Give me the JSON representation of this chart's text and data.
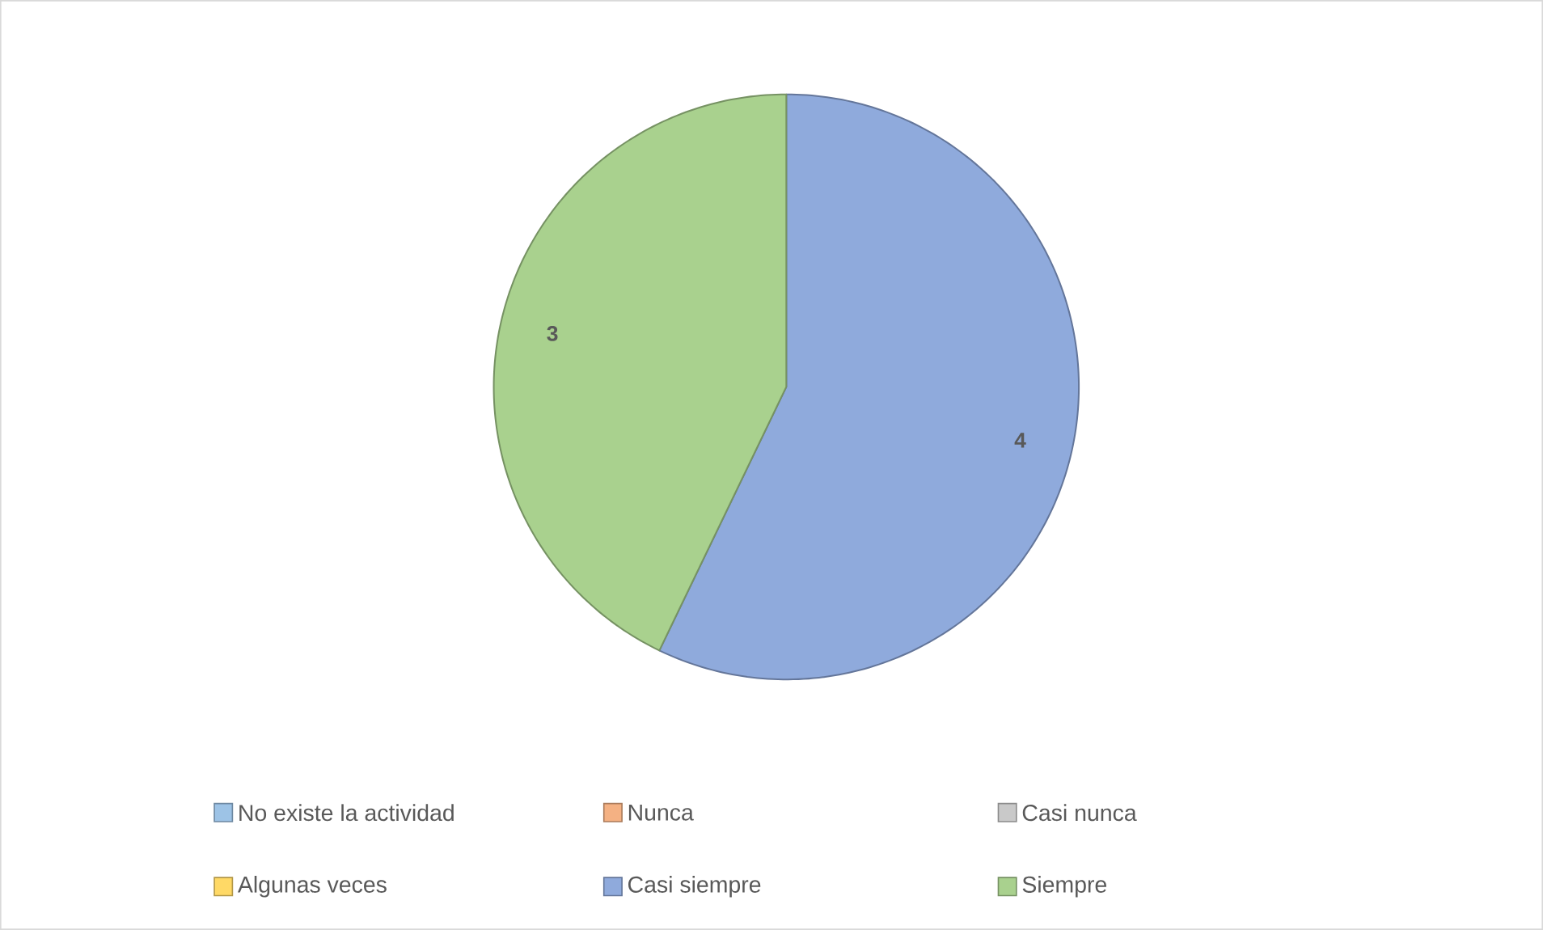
{
  "chart_data": {
    "type": "pie",
    "categories": [
      "No existe la actividad",
      "Nunca",
      "Casi nunca",
      "Algunas veces",
      "Casi siempre",
      "Siempre"
    ],
    "values": [
      0,
      0,
      0,
      0,
      4,
      3
    ],
    "colors": [
      "#9dc3e6",
      "#f4b183",
      "#c9c9c9",
      "#ffd966",
      "#8faadc",
      "#a9d18e"
    ],
    "value_labels": [
      null,
      null,
      null,
      null,
      "4",
      "3"
    ],
    "legend": "bottom"
  }
}
